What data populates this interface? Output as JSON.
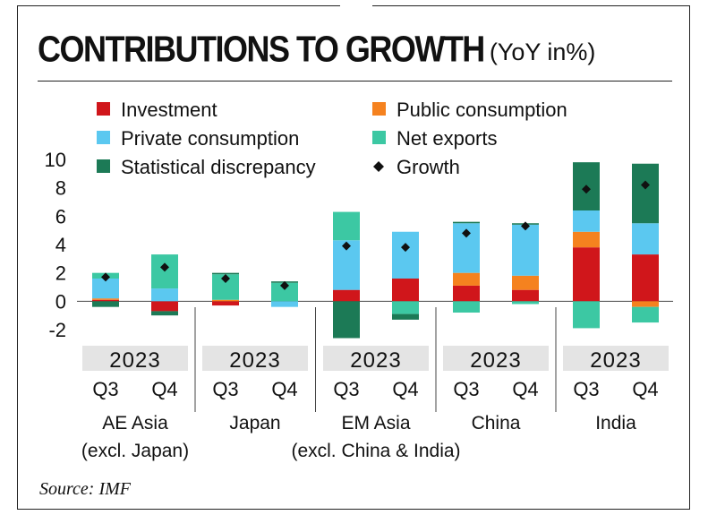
{
  "title": {
    "main": "CONTRIBUTIONS TO GROWTH",
    "unit": "(YoY in%)"
  },
  "source": "Source: IMF",
  "colors": {
    "investment": "#d0161b",
    "public_consumption": "#f5821f",
    "private_consumption": "#5bc8f0",
    "net_exports": "#3cc8a3",
    "statistical_discrepancy": "#1c7a56",
    "growth_marker": "#111111",
    "year_band": "#e4e4e4"
  },
  "chart_data": {
    "type": "stacked_bar",
    "title": "CONTRIBUTIONS TO GROWTH (YoY in%)",
    "ylim": [
      -2,
      10
    ],
    "yticks": [
      "-2",
      "0",
      "2",
      "4",
      "6",
      "8",
      "10"
    ],
    "legend": [
      {
        "key": "investment",
        "label": "Investment",
        "marker": "square"
      },
      {
        "key": "public_consumption",
        "label": "Public consumption",
        "marker": "square"
      },
      {
        "key": "private_consumption",
        "label": "Private consumption",
        "marker": "square"
      },
      {
        "key": "net_exports",
        "label": "Net exports",
        "marker": "square"
      },
      {
        "key": "statistical_discrepancy",
        "label": "Statistical discrepancy",
        "marker": "square"
      },
      {
        "key": "growth",
        "label": "Growth",
        "marker": "diamond"
      }
    ],
    "groups": [
      {
        "name": "AE Asia (excl. Japan)",
        "label_lines": [
          "AE Asia",
          "(excl. Japan)"
        ],
        "year": "2023",
        "bars": [
          {
            "quarter": "Q3",
            "growth": 1.7,
            "components": {
              "investment": 0.1,
              "public_consumption": 0.1,
              "private_consumption": 1.4,
              "net_exports": 0.4,
              "statistical_discrepancy": -0.4
            }
          },
          {
            "quarter": "Q4",
            "growth": 2.4,
            "components": {
              "investment": -0.7,
              "public_consumption": 0.0,
              "private_consumption": 0.9,
              "net_exports": 2.4,
              "statistical_discrepancy": -0.3
            }
          }
        ]
      },
      {
        "name": "Japan",
        "label_lines": [
          "Japan"
        ],
        "year": "2023",
        "bars": [
          {
            "quarter": "Q3",
            "growth": 1.6,
            "components": {
              "investment": -0.3,
              "public_consumption": 0.1,
              "private_consumption": 0.0,
              "net_exports": 1.8,
              "statistical_discrepancy": 0.1
            }
          },
          {
            "quarter": "Q4",
            "growth": 1.1,
            "components": {
              "investment": 0.0,
              "public_consumption": 0.0,
              "private_consumption": -0.4,
              "net_exports": 1.3,
              "statistical_discrepancy": 0.1
            }
          }
        ]
      },
      {
        "name": "EM Asia (excl. China & India)",
        "label_lines": [
          "EM Asia",
          "(excl. China & India)"
        ],
        "year": "2023",
        "bars": [
          {
            "quarter": "Q3",
            "growth": 3.9,
            "components": {
              "investment": 0.8,
              "public_consumption": 0.0,
              "private_consumption": 3.5,
              "net_exports": 2.0,
              "statistical_discrepancy": -2.6
            }
          },
          {
            "quarter": "Q4",
            "growth": 3.8,
            "components": {
              "investment": 1.6,
              "public_consumption": 0.0,
              "private_consumption": 3.3,
              "net_exports": -0.9,
              "statistical_discrepancy": -0.4
            }
          }
        ]
      },
      {
        "name": "China",
        "label_lines": [
          "China"
        ],
        "year": "2023",
        "bars": [
          {
            "quarter": "Q3",
            "growth": 4.8,
            "components": {
              "investment": 1.1,
              "public_consumption": 0.9,
              "private_consumption": 3.5,
              "net_exports": -0.8,
              "statistical_discrepancy": 0.1
            }
          },
          {
            "quarter": "Q4",
            "growth": 5.3,
            "components": {
              "investment": 0.8,
              "public_consumption": 1.0,
              "private_consumption": 3.6,
              "net_exports": -0.2,
              "statistical_discrepancy": 0.1
            }
          }
        ]
      },
      {
        "name": "India",
        "label_lines": [
          "India"
        ],
        "year": "2023",
        "bars": [
          {
            "quarter": "Q3",
            "growth": 7.9,
            "components": {
              "investment": 3.8,
              "public_consumption": 1.1,
              "private_consumption": 1.5,
              "net_exports": -1.9,
              "statistical_discrepancy": 3.4
            }
          },
          {
            "quarter": "Q4",
            "growth": 8.2,
            "components": {
              "investment": 3.3,
              "public_consumption": -0.4,
              "private_consumption": 2.2,
              "net_exports": -1.1,
              "statistical_discrepancy": 4.2
            }
          }
        ]
      }
    ]
  }
}
